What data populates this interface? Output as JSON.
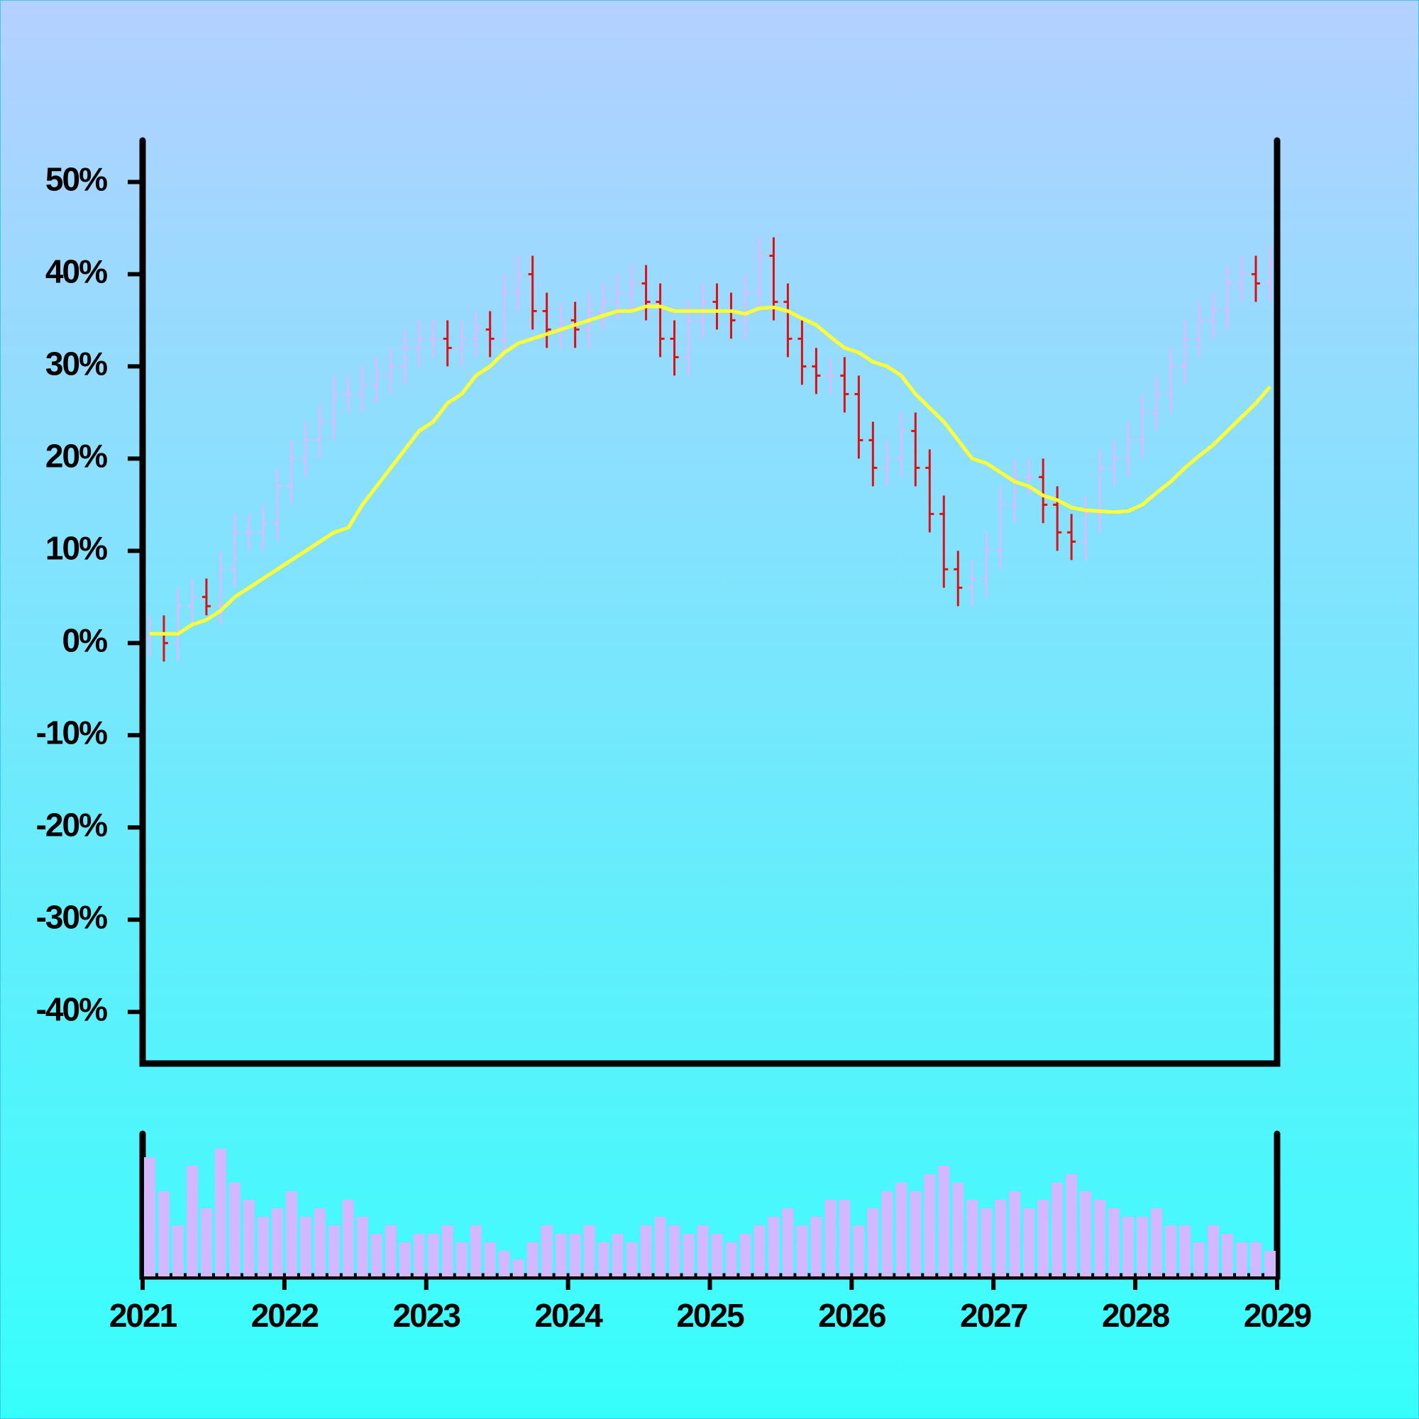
{
  "chart_data": {
    "type": "ohlc",
    "x": [
      2021.05,
      2021.15,
      2021.25,
      2021.35,
      2021.45,
      2021.55,
      2021.65,
      2021.75,
      2021.85,
      2021.95,
      2022.05,
      2022.15,
      2022.25,
      2022.35,
      2022.45,
      2022.55,
      2022.65,
      2022.75,
      2022.85,
      2022.95,
      2023.05,
      2023.15,
      2023.25,
      2023.35,
      2023.45,
      2023.55,
      2023.65,
      2023.75,
      2023.85,
      2023.95,
      2024.05,
      2024.15,
      2024.25,
      2024.35,
      2024.45,
      2024.55,
      2024.65,
      2024.75,
      2024.85,
      2024.95,
      2025.05,
      2025.15,
      2025.25,
      2025.35,
      2025.45,
      2025.55,
      2025.65,
      2025.75,
      2025.85,
      2025.95,
      2026.05,
      2026.15,
      2026.25,
      2026.35,
      2026.45,
      2026.55,
      2026.65,
      2026.75,
      2026.85,
      2026.95,
      2027.05,
      2027.15,
      2027.25,
      2027.35,
      2027.45,
      2027.55,
      2027.65,
      2027.75,
      2027.85,
      2027.95,
      2028.05,
      2028.15,
      2028.25,
      2028.35,
      2028.45,
      2028.55,
      2028.65,
      2028.75,
      2028.85,
      2028.95
    ],
    "open": [
      0.5,
      1,
      0,
      4,
      5,
      4,
      8,
      12,
      12,
      13,
      17,
      20,
      22,
      24,
      27,
      27,
      28,
      29,
      30,
      32,
      33,
      33,
      32,
      33,
      34,
      33,
      38,
      40,
      36,
      34,
      35,
      34,
      36,
      37,
      38,
      39,
      37,
      33,
      31,
      35,
      37,
      36,
      35,
      38,
      42,
      37,
      33,
      30,
      29,
      29,
      27,
      22,
      19,
      20,
      23,
      19,
      14,
      8,
      6,
      7,
      10,
      15,
      18,
      18,
      15,
      12,
      11,
      14,
      19,
      20,
      22,
      25,
      27,
      30,
      33,
      35,
      36,
      39,
      40,
      39
    ],
    "high": [
      3,
      3,
      6,
      7,
      7,
      10,
      14,
      14,
      15,
      19,
      22,
      24,
      26,
      29,
      29,
      30,
      31,
      32,
      34,
      35,
      35,
      35,
      35,
      36,
      36,
      40,
      42,
      42,
      38,
      37,
      37,
      38,
      39,
      40,
      41,
      41,
      39,
      35,
      37,
      39,
      39,
      38,
      40,
      44,
      44,
      39,
      35,
      32,
      31,
      31,
      29,
      24,
      22,
      25,
      25,
      21,
      16,
      10,
      9,
      12,
      17,
      20,
      20,
      20,
      17,
      14,
      16,
      21,
      22,
      24,
      27,
      29,
      32,
      35,
      37,
      38,
      41,
      42,
      42,
      43
    ],
    "low": [
      -1.5,
      -2,
      -2,
      2,
      3,
      2,
      6,
      10,
      10,
      11,
      15,
      18,
      20,
      22,
      25,
      25,
      26,
      27,
      28,
      30,
      31,
      30,
      30,
      31,
      31,
      31,
      36,
      34,
      32,
      32,
      32,
      32,
      34,
      35,
      36,
      35,
      31,
      29,
      29,
      33,
      34,
      33,
      33,
      36,
      35,
      31,
      28,
      27,
      27,
      25,
      20,
      17,
      17,
      18,
      17,
      12,
      6,
      4,
      4,
      5,
      8,
      13,
      16,
      13,
      10,
      9,
      9,
      12,
      17,
      18,
      20,
      23,
      25,
      28,
      31,
      33,
      34,
      37,
      37,
      37
    ],
    "close": [
      1,
      0,
      4,
      5,
      4,
      8,
      12,
      12,
      13,
      17,
      20,
      22,
      24,
      27,
      27,
      28,
      29,
      30,
      32,
      33,
      33,
      32,
      33,
      34,
      33,
      38,
      40,
      36,
      34,
      35,
      34,
      36,
      37,
      38,
      39,
      37,
      33,
      31,
      35,
      37,
      36,
      35,
      38,
      42,
      37,
      33,
      30,
      29,
      29,
      27,
      22,
      19,
      20,
      23,
      19,
      14,
      8,
      6,
      7,
      10,
      15,
      18,
      18,
      15,
      12,
      11,
      14,
      19,
      20,
      22,
      25,
      27,
      30,
      33,
      35,
      36,
      39,
      40,
      39,
      41
    ],
    "volume": [
      70,
      50,
      30,
      65,
      40,
      75,
      55,
      45,
      35,
      40,
      50,
      35,
      40,
      30,
      45,
      35,
      25,
      30,
      20,
      25,
      25,
      30,
      20,
      30,
      20,
      15,
      10,
      20,
      30,
      25,
      25,
      30,
      20,
      25,
      20,
      30,
      35,
      30,
      25,
      30,
      25,
      20,
      25,
      30,
      35,
      40,
      30,
      35,
      45,
      45,
      30,
      40,
      50,
      55,
      50,
      60,
      65,
      55,
      45,
      40,
      45,
      50,
      40,
      45,
      55,
      60,
      50,
      45,
      40,
      35,
      35,
      40,
      30,
      30,
      20,
      30,
      25,
      20,
      20,
      15
    ],
    "moving_average": {
      "color": "#ffff33",
      "values": [
        1,
        1,
        1,
        2,
        2.5,
        3.5,
        5,
        6,
        7,
        8,
        9,
        10,
        11,
        12,
        12.5,
        15,
        17,
        19,
        21,
        23,
        24,
        26,
        27,
        29,
        30,
        31.5,
        32.5,
        33,
        33.5,
        34,
        34.5,
        35,
        35.5,
        36,
        36,
        36.5,
        36.5,
        36,
        36,
        36,
        36,
        36,
        35.7,
        36.3,
        36.4,
        36,
        35.2,
        34.5,
        33.2,
        32,
        31.5,
        30.5,
        30,
        29,
        27,
        25.5,
        24,
        22,
        20,
        19.5,
        18.5,
        17.5,
        17,
        16,
        15.5,
        14.7,
        14.4,
        14.3,
        14.2,
        14.3,
        15,
        16.3,
        17.5,
        19,
        20.3,
        21.5,
        23,
        24.5,
        26,
        27.8
      ]
    },
    "up_color": "#d9bbff",
    "down_color": "#dd1111",
    "volume_color": "#d4b8ff",
    "ylim": [
      -45.6,
      54.5
    ],
    "yticks": [
      {
        "value": 50,
        "label": "50%"
      },
      {
        "value": 40,
        "label": "40%"
      },
      {
        "value": 30,
        "label": "30%"
      },
      {
        "value": 20,
        "label": "20%"
      },
      {
        "value": 10,
        "label": "10%"
      },
      {
        "value": 0,
        "label": "0%"
      },
      {
        "value": -10,
        "label": "-10%"
      },
      {
        "value": -20,
        "label": "-20%"
      },
      {
        "value": -30,
        "label": "-30%"
      },
      {
        "value": -40,
        "label": "-40%"
      }
    ],
    "xlim": [
      2021,
      2029
    ],
    "xticks": [
      2021,
      2022,
      2023,
      2024,
      2025,
      2026,
      2027,
      2028,
      2029
    ]
  }
}
